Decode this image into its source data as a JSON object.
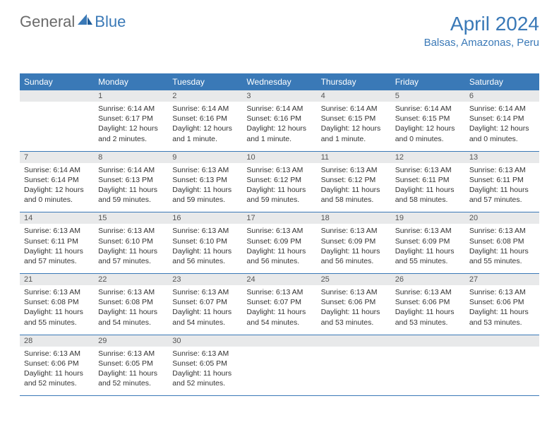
{
  "logo": {
    "text1": "General",
    "text2": "Blue",
    "color1": "#6a6a6a",
    "color2": "#3a79b7"
  },
  "title": "April 2024",
  "subtitle": "Balsas, Amazonas, Peru",
  "colors": {
    "header_bg": "#3a79b7",
    "date_bg": "#e8e9ea",
    "border": "#3a79b7",
    "text": "#333333"
  },
  "day_names": [
    "Sunday",
    "Monday",
    "Tuesday",
    "Wednesday",
    "Thursday",
    "Friday",
    "Saturday"
  ],
  "weeks": [
    {
      "dates": [
        "",
        "1",
        "2",
        "3",
        "4",
        "5",
        "6"
      ],
      "cells": [
        {
          "sunrise": "",
          "sunset": "",
          "daylight": ""
        },
        {
          "sunrise": "Sunrise: 6:14 AM",
          "sunset": "Sunset: 6:17 PM",
          "daylight": "Daylight: 12 hours and 2 minutes."
        },
        {
          "sunrise": "Sunrise: 6:14 AM",
          "sunset": "Sunset: 6:16 PM",
          "daylight": "Daylight: 12 hours and 1 minute."
        },
        {
          "sunrise": "Sunrise: 6:14 AM",
          "sunset": "Sunset: 6:16 PM",
          "daylight": "Daylight: 12 hours and 1 minute."
        },
        {
          "sunrise": "Sunrise: 6:14 AM",
          "sunset": "Sunset: 6:15 PM",
          "daylight": "Daylight: 12 hours and 1 minute."
        },
        {
          "sunrise": "Sunrise: 6:14 AM",
          "sunset": "Sunset: 6:15 PM",
          "daylight": "Daylight: 12 hours and 0 minutes."
        },
        {
          "sunrise": "Sunrise: 6:14 AM",
          "sunset": "Sunset: 6:14 PM",
          "daylight": "Daylight: 12 hours and 0 minutes."
        }
      ]
    },
    {
      "dates": [
        "7",
        "8",
        "9",
        "10",
        "11",
        "12",
        "13"
      ],
      "cells": [
        {
          "sunrise": "Sunrise: 6:14 AM",
          "sunset": "Sunset: 6:14 PM",
          "daylight": "Daylight: 12 hours and 0 minutes."
        },
        {
          "sunrise": "Sunrise: 6:14 AM",
          "sunset": "Sunset: 6:13 PM",
          "daylight": "Daylight: 11 hours and 59 minutes."
        },
        {
          "sunrise": "Sunrise: 6:13 AM",
          "sunset": "Sunset: 6:13 PM",
          "daylight": "Daylight: 11 hours and 59 minutes."
        },
        {
          "sunrise": "Sunrise: 6:13 AM",
          "sunset": "Sunset: 6:12 PM",
          "daylight": "Daylight: 11 hours and 59 minutes."
        },
        {
          "sunrise": "Sunrise: 6:13 AM",
          "sunset": "Sunset: 6:12 PM",
          "daylight": "Daylight: 11 hours and 58 minutes."
        },
        {
          "sunrise": "Sunrise: 6:13 AM",
          "sunset": "Sunset: 6:11 PM",
          "daylight": "Daylight: 11 hours and 58 minutes."
        },
        {
          "sunrise": "Sunrise: 6:13 AM",
          "sunset": "Sunset: 6:11 PM",
          "daylight": "Daylight: 11 hours and 57 minutes."
        }
      ]
    },
    {
      "dates": [
        "14",
        "15",
        "16",
        "17",
        "18",
        "19",
        "20"
      ],
      "cells": [
        {
          "sunrise": "Sunrise: 6:13 AM",
          "sunset": "Sunset: 6:11 PM",
          "daylight": "Daylight: 11 hours and 57 minutes."
        },
        {
          "sunrise": "Sunrise: 6:13 AM",
          "sunset": "Sunset: 6:10 PM",
          "daylight": "Daylight: 11 hours and 57 minutes."
        },
        {
          "sunrise": "Sunrise: 6:13 AM",
          "sunset": "Sunset: 6:10 PM",
          "daylight": "Daylight: 11 hours and 56 minutes."
        },
        {
          "sunrise": "Sunrise: 6:13 AM",
          "sunset": "Sunset: 6:09 PM",
          "daylight": "Daylight: 11 hours and 56 minutes."
        },
        {
          "sunrise": "Sunrise: 6:13 AM",
          "sunset": "Sunset: 6:09 PM",
          "daylight": "Daylight: 11 hours and 56 minutes."
        },
        {
          "sunrise": "Sunrise: 6:13 AM",
          "sunset": "Sunset: 6:09 PM",
          "daylight": "Daylight: 11 hours and 55 minutes."
        },
        {
          "sunrise": "Sunrise: 6:13 AM",
          "sunset": "Sunset: 6:08 PM",
          "daylight": "Daylight: 11 hours and 55 minutes."
        }
      ]
    },
    {
      "dates": [
        "21",
        "22",
        "23",
        "24",
        "25",
        "26",
        "27"
      ],
      "cells": [
        {
          "sunrise": "Sunrise: 6:13 AM",
          "sunset": "Sunset: 6:08 PM",
          "daylight": "Daylight: 11 hours and 55 minutes."
        },
        {
          "sunrise": "Sunrise: 6:13 AM",
          "sunset": "Sunset: 6:08 PM",
          "daylight": "Daylight: 11 hours and 54 minutes."
        },
        {
          "sunrise": "Sunrise: 6:13 AM",
          "sunset": "Sunset: 6:07 PM",
          "daylight": "Daylight: 11 hours and 54 minutes."
        },
        {
          "sunrise": "Sunrise: 6:13 AM",
          "sunset": "Sunset: 6:07 PM",
          "daylight": "Daylight: 11 hours and 54 minutes."
        },
        {
          "sunrise": "Sunrise: 6:13 AM",
          "sunset": "Sunset: 6:06 PM",
          "daylight": "Daylight: 11 hours and 53 minutes."
        },
        {
          "sunrise": "Sunrise: 6:13 AM",
          "sunset": "Sunset: 6:06 PM",
          "daylight": "Daylight: 11 hours and 53 minutes."
        },
        {
          "sunrise": "Sunrise: 6:13 AM",
          "sunset": "Sunset: 6:06 PM",
          "daylight": "Daylight: 11 hours and 53 minutes."
        }
      ]
    },
    {
      "dates": [
        "28",
        "29",
        "30",
        "",
        "",
        "",
        ""
      ],
      "cells": [
        {
          "sunrise": "Sunrise: 6:13 AM",
          "sunset": "Sunset: 6:06 PM",
          "daylight": "Daylight: 11 hours and 52 minutes."
        },
        {
          "sunrise": "Sunrise: 6:13 AM",
          "sunset": "Sunset: 6:05 PM",
          "daylight": "Daylight: 11 hours and 52 minutes."
        },
        {
          "sunrise": "Sunrise: 6:13 AM",
          "sunset": "Sunset: 6:05 PM",
          "daylight": "Daylight: 11 hours and 52 minutes."
        },
        {
          "sunrise": "",
          "sunset": "",
          "daylight": ""
        },
        {
          "sunrise": "",
          "sunset": "",
          "daylight": ""
        },
        {
          "sunrise": "",
          "sunset": "",
          "daylight": ""
        },
        {
          "sunrise": "",
          "sunset": "",
          "daylight": ""
        }
      ]
    }
  ]
}
